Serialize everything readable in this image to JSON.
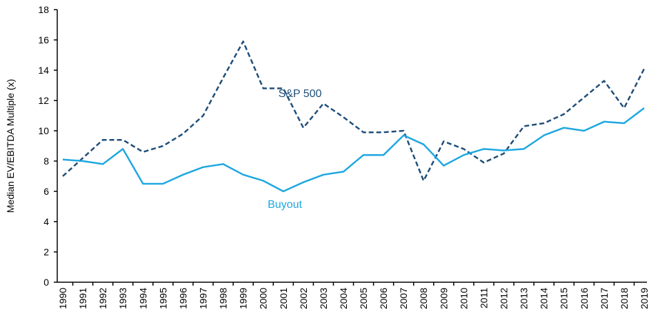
{
  "chart_data": {
    "type": "line",
    "y_label": "Median EV/EBITDA Multiple (x)",
    "categories": [
      "1990",
      "1991",
      "1992",
      "1993",
      "1994",
      "1995",
      "1996",
      "1997",
      "1998",
      "1999",
      "2000",
      "2001",
      "2002",
      "2003",
      "2004",
      "2005",
      "2006",
      "2007",
      "2008",
      "2009",
      "2010",
      "2011",
      "2012",
      "2013",
      "2014",
      "2015",
      "2016",
      "2017",
      "2018",
      "2019"
    ],
    "series": [
      {
        "name": "S&P 500",
        "color": "#1f4e79",
        "dashed": true,
        "values": [
          7.0,
          8.2,
          9.4,
          9.4,
          8.6,
          9.0,
          9.8,
          11.0,
          13.5,
          15.9,
          12.8,
          12.8,
          10.2,
          11.8,
          10.9,
          9.9,
          9.9,
          10.0,
          6.7,
          9.3,
          8.8,
          7.9,
          8.5,
          10.3,
          10.5,
          11.1,
          12.2,
          13.3,
          11.5,
          14.1
        ]
      },
      {
        "name": "Buyout",
        "color": "#1ea7e1",
        "dashed": false,
        "values": [
          8.1,
          8.0,
          7.8,
          8.8,
          6.5,
          6.5,
          7.1,
          7.6,
          7.8,
          7.1,
          6.7,
          6.0,
          6.6,
          7.1,
          7.3,
          8.4,
          8.4,
          9.7,
          9.1,
          7.7,
          8.4,
          8.8,
          8.7,
          8.8,
          9.7,
          10.2,
          10.0,
          10.6,
          10.5,
          11.5
        ]
      }
    ],
    "ylim": [
      0,
      18
    ],
    "yticks": [
      0,
      2,
      4,
      6,
      8,
      10,
      12,
      14,
      16,
      18
    ],
    "grid": false
  }
}
